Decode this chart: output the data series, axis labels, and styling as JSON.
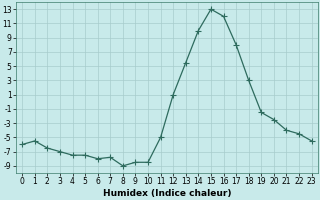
{
  "x": [
    0,
    1,
    2,
    3,
    4,
    5,
    6,
    7,
    8,
    9,
    10,
    11,
    12,
    13,
    14,
    15,
    16,
    17,
    18,
    19,
    20,
    21,
    22,
    23
  ],
  "y": [
    -6,
    -5.5,
    -6.5,
    -7,
    -7.5,
    -7.5,
    -8,
    -7.8,
    -9,
    -8.5,
    -8.5,
    -5,
    1,
    5.5,
    10,
    13,
    12,
    8,
    3,
    -1.5,
    -2.5,
    -4,
    -4.5,
    -5.5
  ],
  "line_color": "#2e6b5e",
  "marker_color": "#2e6b5e",
  "bg_color": "#c8eaea",
  "grid_color": "#a8cccc",
  "xlabel": "Humidex (Indice chaleur)",
  "xlim": [
    -0.5,
    23.5
  ],
  "ylim": [
    -10,
    14
  ],
  "yticks": [
    -9,
    -7,
    -5,
    -3,
    -1,
    1,
    3,
    5,
    7,
    9,
    11,
    13
  ],
  "xticks": [
    0,
    1,
    2,
    3,
    4,
    5,
    6,
    7,
    8,
    9,
    10,
    11,
    12,
    13,
    14,
    15,
    16,
    17,
    18,
    19,
    20,
    21,
    22,
    23
  ],
  "tick_fontsize": 5.5,
  "xlabel_fontsize": 6.5,
  "linewidth": 0.9,
  "markersize": 2.0
}
